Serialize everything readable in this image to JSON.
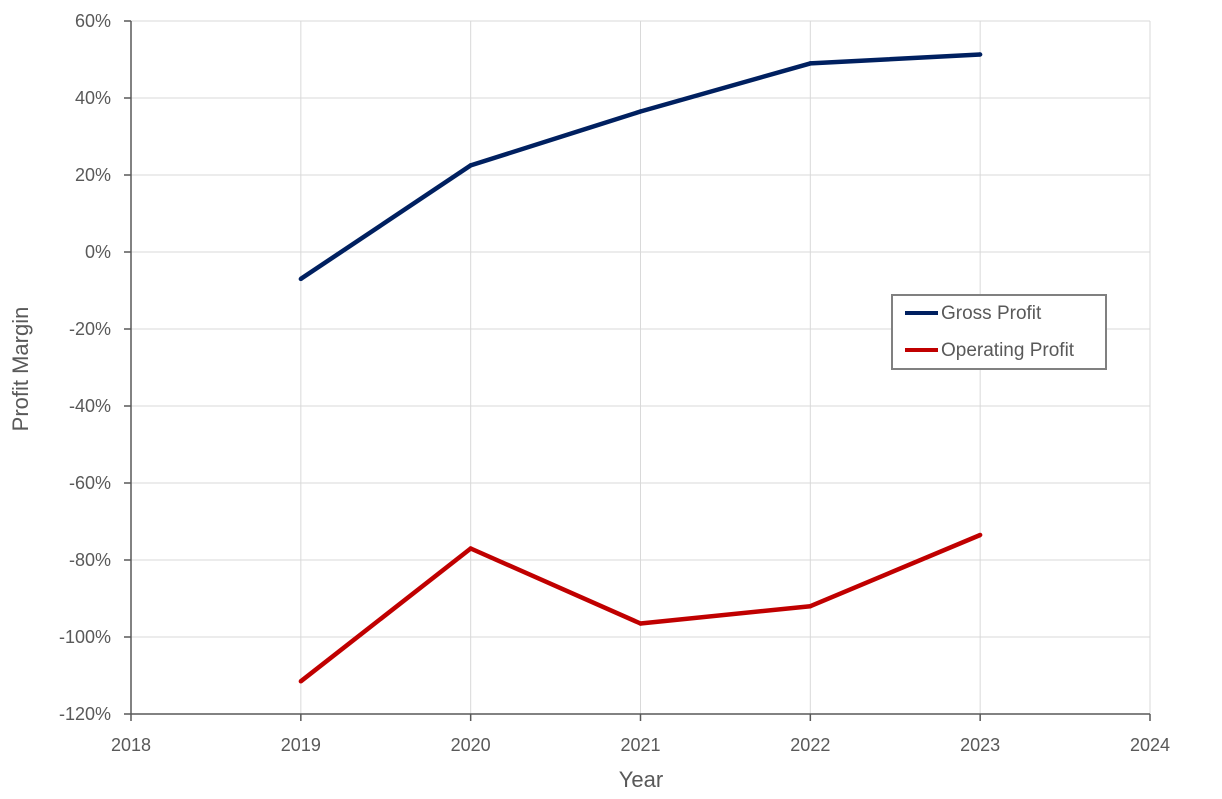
{
  "chart_data": {
    "type": "line",
    "title": "",
    "xlabel": "Year",
    "ylabel": "Profit Margin",
    "xlim": [
      2018,
      2024
    ],
    "ylim": [
      -120,
      60
    ],
    "x_ticks": [
      "2018",
      "2019",
      "2020",
      "2021",
      "2022",
      "2023",
      "2024"
    ],
    "y_ticks": [
      "60%",
      "40%",
      "20%",
      "0%",
      "-20%",
      "-40%",
      "-60%",
      "-80%",
      "-100%",
      "-120%"
    ],
    "y_unit": "%",
    "grid": true,
    "legend_position": "right",
    "x": [
      2019,
      2020,
      2021,
      2022,
      2023
    ],
    "series": [
      {
        "name": "Gross Profit",
        "color": "#002060",
        "values": [
          -7,
          22.5,
          36.5,
          49,
          51.3
        ]
      },
      {
        "name": "Operating Profit",
        "color": "#C00000",
        "values": [
          -111.5,
          -77,
          -96.5,
          -92,
          -73.5
        ]
      }
    ]
  }
}
